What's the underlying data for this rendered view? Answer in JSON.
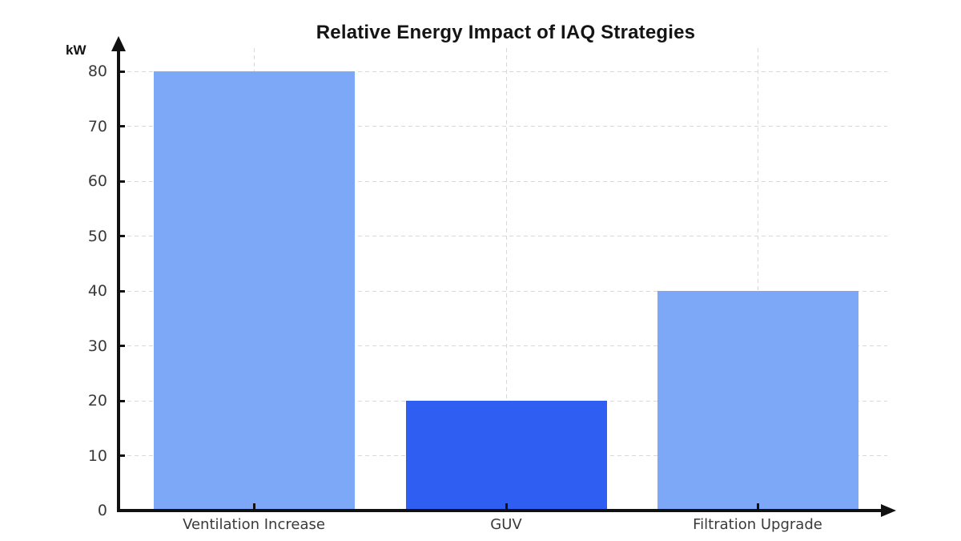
{
  "chart_data": {
    "type": "bar",
    "title": "Relative Energy Impact of IAQ Strategies",
    "ylabel": "kW",
    "xlabel": "",
    "categories": [
      "Ventilation Increase",
      "GUV",
      "Filtration Upgrade"
    ],
    "values": [
      80,
      20,
      40
    ],
    "bar_colors": [
      "#7da8f8",
      "#2e5ff2",
      "#7da8f8"
    ],
    "yticks": [
      0,
      10,
      20,
      30,
      40,
      50,
      60,
      70,
      80
    ],
    "ylim": [
      0,
      84
    ],
    "grid": true,
    "grid_style": "dashed",
    "gridline_color": "#d8d8d8",
    "axis_color": "#111111",
    "tick_label_color": "#3a3a3a",
    "tick_direction": "in",
    "axis_arrows": true,
    "background": "#ffffff",
    "legend": false
  }
}
